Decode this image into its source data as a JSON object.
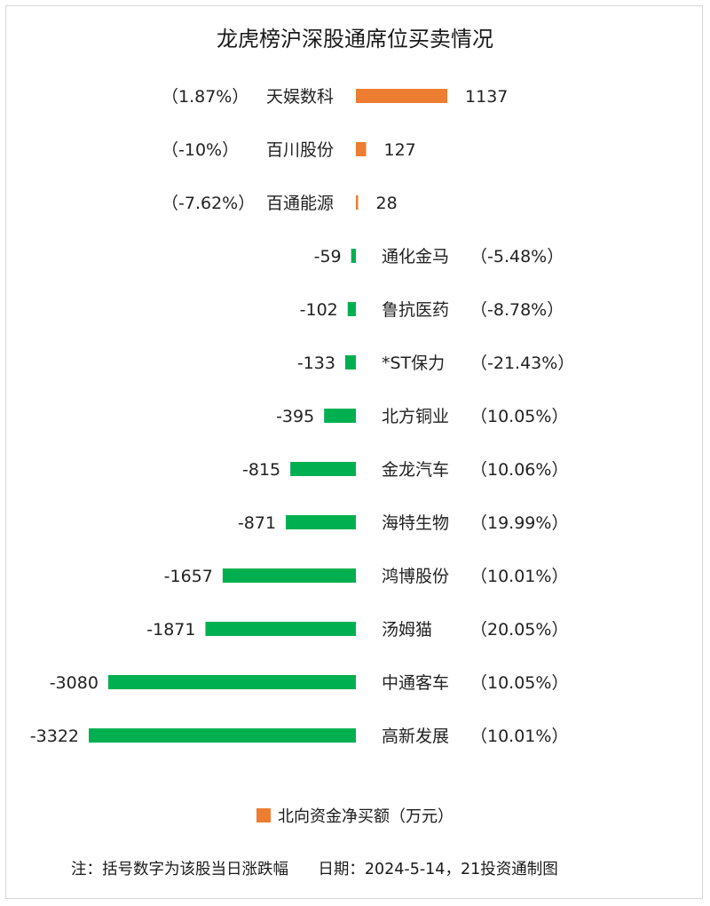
{
  "title": "龙虎榜沪深股通席位买卖情况",
  "colors": {
    "positive": "#ED7D31",
    "negative": "#00B050"
  },
  "legend": {
    "label": "北向资金净买额（万元）"
  },
  "footnote": "注：括号数字为该股当日涨跌幅      日期：2024-5-14，21投资通制图",
  "chart_data": {
    "type": "bar",
    "orientation": "horizontal",
    "title": "龙虎榜沪深股通席位买卖情况",
    "categories": [
      "天娱数科",
      "百川股份",
      "百通能源",
      "通化金马",
      "鲁抗医药",
      "*ST保力",
      "北方铜业",
      "金龙汽车",
      "海特生物",
      "鸿博股份",
      "汤姆猫",
      "中通客车",
      "高新发展"
    ],
    "series": [
      {
        "name": "北向资金净买额（万元）",
        "values": [
          1137,
          127,
          28,
          -59,
          -102,
          -133,
          -395,
          -815,
          -871,
          -1657,
          -1871,
          -3080,
          -3322
        ]
      }
    ],
    "value_labels": [
      "1137",
      "127",
      "28",
      "-59",
      "-102",
      "-133",
      "-395",
      "-815",
      "-871",
      "-1657",
      "-1871",
      "-3080",
      "-3322"
    ],
    "change_labels": [
      "（1.87%）",
      "（-10%）",
      "（-7.62%）",
      "（-5.48%）",
      "（-8.78%）",
      "（-21.43%）",
      "（10.05%）",
      "（10.06%）",
      "（19.99%）",
      "（10.01%）",
      "（20.05%）",
      "（10.05%）",
      "（10.01%）"
    ],
    "legend_position": "bottom",
    "grid": false
  }
}
